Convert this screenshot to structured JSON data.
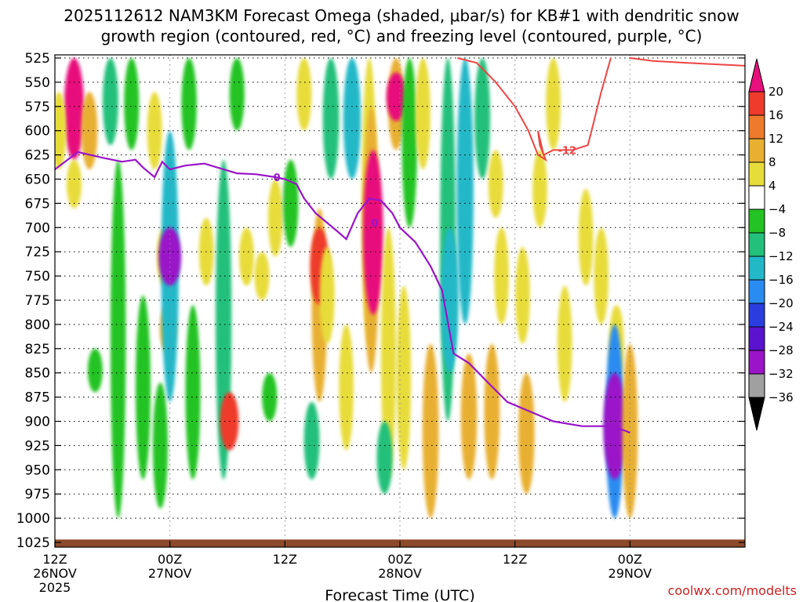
{
  "chart_data": {
    "type": "heatmap",
    "title_line1": "2025112612 NAM3KM Forecast Omega (shaded, μbar/s) for KB#1 with dendritic snow",
    "title_line2": "growth region (contoured, red, °C) and freezing level (contoured, purple, °C)",
    "xlabel": "Forecast Time (UTC)",
    "credit": "coolwx.com/modelts",
    "x_range_hours": [
      0,
      36
    ],
    "x_ticks": [
      {
        "hour": 0,
        "line1": "12Z",
        "line2": "26NOV",
        "line3": "2025"
      },
      {
        "hour": 6,
        "line1": "00Z",
        "line2": "27NOV",
        "line3": ""
      },
      {
        "hour": 12,
        "line1": "12Z",
        "line2": "",
        "line3": ""
      },
      {
        "hour": 18,
        "line1": "00Z",
        "line2": "28NOV",
        "line3": ""
      },
      {
        "hour": 24,
        "line1": "12Z",
        "line2": "",
        "line3": ""
      },
      {
        "hour": 30,
        "line1": "00Z",
        "line2": "29NOV",
        "line3": ""
      }
    ],
    "y_range_hpa": [
      1030,
      525
    ],
    "y_ticks": [
      525,
      550,
      575,
      600,
      625,
      650,
      675,
      700,
      725,
      750,
      775,
      800,
      825,
      850,
      875,
      900,
      925,
      950,
      975,
      1000,
      1025
    ],
    "surface_pressure_hpa": 1022,
    "colorbar": {
      "labels": [
        "20",
        "16",
        "12",
        "8",
        "4",
        "−4",
        "−8",
        "−12",
        "−16",
        "−20",
        "−24",
        "−28",
        "−32",
        "−36"
      ],
      "colors": [
        "#e8107c",
        "#ee3b2b",
        "#ee7a2b",
        "#e8b030",
        "#e8dc3a",
        "#ffffff",
        "#22c322",
        "#22c07a",
        "#22b8c8",
        "#2a8cf0",
        "#2a3ee0",
        "#5a14d0",
        "#9a14c8",
        "#a0a0a0"
      ]
    },
    "omega_cells": [
      {
        "hour": 1.0,
        "p_top": 525,
        "p_bot": 630,
        "value": 22
      },
      {
        "hour": 1.0,
        "p_top": 630,
        "p_bot": 680,
        "value": 6
      },
      {
        "hour": 0.2,
        "p_top": 560,
        "p_bot": 640,
        "value": 6
      },
      {
        "hour": 1.8,
        "p_top": 560,
        "p_bot": 640,
        "value": 10
      },
      {
        "hour": 2.9,
        "p_top": 525,
        "p_bot": 615,
        "value": -8
      },
      {
        "hour": 3.3,
        "p_top": 630,
        "p_bot": 1000,
        "value": -7
      },
      {
        "hour": 2.1,
        "p_top": 825,
        "p_bot": 870,
        "value": -6
      },
      {
        "hour": 4.0,
        "p_top": 525,
        "p_bot": 620,
        "value": -6
      },
      {
        "hour": 4.6,
        "p_top": 770,
        "p_bot": 960,
        "value": -6
      },
      {
        "hour": 5.2,
        "p_top": 560,
        "p_bot": 640,
        "value": 6
      },
      {
        "hour": 5.7,
        "p_top": 700,
        "p_bot": 760,
        "value": 5
      },
      {
        "hour": 5.9,
        "p_top": 780,
        "p_bot": 830,
        "value": 10
      },
      {
        "hour": 5.5,
        "p_top": 860,
        "p_bot": 990,
        "value": -6
      },
      {
        "hour": 6.0,
        "p_top": 600,
        "p_bot": 880,
        "value": -14
      },
      {
        "hour": 6.0,
        "p_top": 700,
        "p_bot": 760,
        "value": -30
      },
      {
        "hour": 7.0,
        "p_top": 525,
        "p_bot": 620,
        "value": -7
      },
      {
        "hour": 7.2,
        "p_top": 780,
        "p_bot": 960,
        "value": -6
      },
      {
        "hour": 7.9,
        "p_top": 690,
        "p_bot": 760,
        "value": 5
      },
      {
        "hour": 8.8,
        "p_top": 630,
        "p_bot": 960,
        "value": -9
      },
      {
        "hour": 9.1,
        "p_top": 870,
        "p_bot": 930,
        "value": 18
      },
      {
        "hour": 9.5,
        "p_top": 525,
        "p_bot": 600,
        "value": -6
      },
      {
        "hour": 10.0,
        "p_top": 700,
        "p_bot": 760,
        "value": 6
      },
      {
        "hour": 10.8,
        "p_top": 725,
        "p_bot": 775,
        "value": 6
      },
      {
        "hour": 11.5,
        "p_top": 650,
        "p_bot": 730,
        "value": 5
      },
      {
        "hour": 11.2,
        "p_top": 850,
        "p_bot": 900,
        "value": -6
      },
      {
        "hour": 13.0,
        "p_top": 525,
        "p_bot": 600,
        "value": 6
      },
      {
        "hour": 12.3,
        "p_top": 630,
        "p_bot": 720,
        "value": -7
      },
      {
        "hour": 13.8,
        "p_top": 680,
        "p_bot": 880,
        "value": 8
      },
      {
        "hour": 13.8,
        "p_top": 700,
        "p_bot": 780,
        "value": 18
      },
      {
        "hour": 13.4,
        "p_top": 880,
        "p_bot": 960,
        "value": -8
      },
      {
        "hour": 14.4,
        "p_top": 525,
        "p_bot": 650,
        "value": -10
      },
      {
        "hour": 14.2,
        "p_top": 720,
        "p_bot": 820,
        "value": 6
      },
      {
        "hour": 15.5,
        "p_top": 525,
        "p_bot": 650,
        "value": -14
      },
      {
        "hour": 15.2,
        "p_top": 800,
        "p_bot": 930,
        "value": 5
      },
      {
        "hour": 16.4,
        "p_top": 525,
        "p_bot": 820,
        "value": 6
      },
      {
        "hour": 16.5,
        "p_top": 575,
        "p_bot": 850,
        "value": 10
      },
      {
        "hour": 16.6,
        "p_top": 620,
        "p_bot": 790,
        "value": 22
      },
      {
        "hour": 17.4,
        "p_top": 700,
        "p_bot": 960,
        "value": 6
      },
      {
        "hour": 17.2,
        "p_top": 900,
        "p_bot": 975,
        "value": -8
      },
      {
        "hour": 17.8,
        "p_top": 525,
        "p_bot": 620,
        "value": 10
      },
      {
        "hour": 17.8,
        "p_top": 540,
        "p_bot": 590,
        "value": 20
      },
      {
        "hour": 18.5,
        "p_top": 525,
        "p_bot": 700,
        "value": -7
      },
      {
        "hour": 18.2,
        "p_top": 760,
        "p_bot": 950,
        "value": 5
      },
      {
        "hour": 19.2,
        "p_top": 525,
        "p_bot": 640,
        "value": 6
      },
      {
        "hour": 19.6,
        "p_top": 820,
        "p_bot": 1000,
        "value": 10
      },
      {
        "hour": 20.5,
        "p_top": 525,
        "p_bot": 900,
        "value": -8
      },
      {
        "hour": 20.6,
        "p_top": 700,
        "p_bot": 850,
        "value": -14
      },
      {
        "hour": 21.4,
        "p_top": 525,
        "p_bot": 800,
        "value": -12
      },
      {
        "hour": 21.6,
        "p_top": 830,
        "p_bot": 960,
        "value": 10
      },
      {
        "hour": 22.3,
        "p_top": 525,
        "p_bot": 650,
        "value": -8
      },
      {
        "hour": 23.0,
        "p_top": 620,
        "p_bot": 690,
        "value": 6
      },
      {
        "hour": 22.8,
        "p_top": 820,
        "p_bot": 960,
        "value": 8
      },
      {
        "hour": 23.3,
        "p_top": 700,
        "p_bot": 800,
        "value": 5
      },
      {
        "hour": 24.4,
        "p_top": 720,
        "p_bot": 820,
        "value": 5
      },
      {
        "hour": 24.6,
        "p_top": 850,
        "p_bot": 975,
        "value": 10
      },
      {
        "hour": 25.3,
        "p_top": 620,
        "p_bot": 700,
        "value": 5
      },
      {
        "hour": 26.0,
        "p_top": 525,
        "p_bot": 620,
        "value": 5
      },
      {
        "hour": 26.6,
        "p_top": 760,
        "p_bot": 880,
        "value": 5
      },
      {
        "hour": 27.7,
        "p_top": 660,
        "p_bot": 760,
        "value": 5
      },
      {
        "hour": 28.5,
        "p_top": 700,
        "p_bot": 800,
        "value": 5
      },
      {
        "hour": 29.3,
        "p_top": 780,
        "p_bot": 860,
        "value": 6
      },
      {
        "hour": 29.2,
        "p_top": 800,
        "p_bot": 1000,
        "value": -16
      },
      {
        "hour": 29.2,
        "p_top": 850,
        "p_bot": 960,
        "value": -30
      },
      {
        "hour": 30.0,
        "p_top": 820,
        "p_bot": 1000,
        "value": 8
      }
    ],
    "dgz_contour": {
      "label": "-12",
      "points": [
        [
          21.0,
          525
        ],
        [
          22.0,
          530
        ],
        [
          22.5,
          540
        ],
        [
          23.0,
          550
        ],
        [
          24.0,
          575
        ],
        [
          24.7,
          600
        ],
        [
          25.2,
          625
        ],
        [
          25.6,
          630
        ],
        [
          25.3,
          615
        ],
        [
          25.2,
          600
        ],
        [
          25.5,
          625
        ],
        [
          26.0,
          620
        ],
        [
          27.0,
          620
        ],
        [
          27.8,
          615
        ],
        [
          28.0,
          600
        ],
        [
          28.5,
          560
        ],
        [
          29.0,
          525
        ]
      ]
    },
    "dgz_contour_upper": {
      "points": [
        [
          30.0,
          525
        ],
        [
          31.2,
          528
        ],
        [
          33.0,
          530
        ],
        [
          36.0,
          533
        ]
      ]
    },
    "freezing_level": {
      "label": "0",
      "points": [
        [
          0.0,
          640
        ],
        [
          1.2,
          622
        ],
        [
          2.5,
          628
        ],
        [
          3.5,
          632
        ],
        [
          4.2,
          630
        ],
        [
          4.6,
          638
        ],
        [
          5.2,
          648
        ],
        [
          5.6,
          632
        ],
        [
          6.0,
          640
        ],
        [
          6.8,
          636
        ],
        [
          7.8,
          634
        ],
        [
          8.8,
          640
        ],
        [
          9.5,
          644
        ],
        [
          10.5,
          645
        ],
        [
          11.5,
          648
        ],
        [
          12.0,
          650
        ],
        [
          12.6,
          655
        ],
        [
          13.0,
          670
        ],
        [
          13.6,
          685
        ],
        [
          14.2,
          695
        ],
        [
          14.8,
          705
        ],
        [
          15.2,
          712
        ],
        [
          15.8,
          685
        ],
        [
          16.4,
          670
        ],
        [
          17.0,
          672
        ],
        [
          17.6,
          685
        ],
        [
          18.0,
          700
        ],
        [
          18.8,
          715
        ],
        [
          19.6,
          740
        ],
        [
          20.2,
          765
        ],
        [
          20.8,
          830
        ],
        [
          21.6,
          840
        ],
        [
          22.6,
          860
        ],
        [
          23.6,
          880
        ],
        [
          24.8,
          890
        ],
        [
          26.0,
          900
        ],
        [
          27.5,
          905
        ],
        [
          29.0,
          905
        ],
        [
          29.8,
          910
        ],
        [
          30.0,
          912
        ]
      ]
    }
  }
}
